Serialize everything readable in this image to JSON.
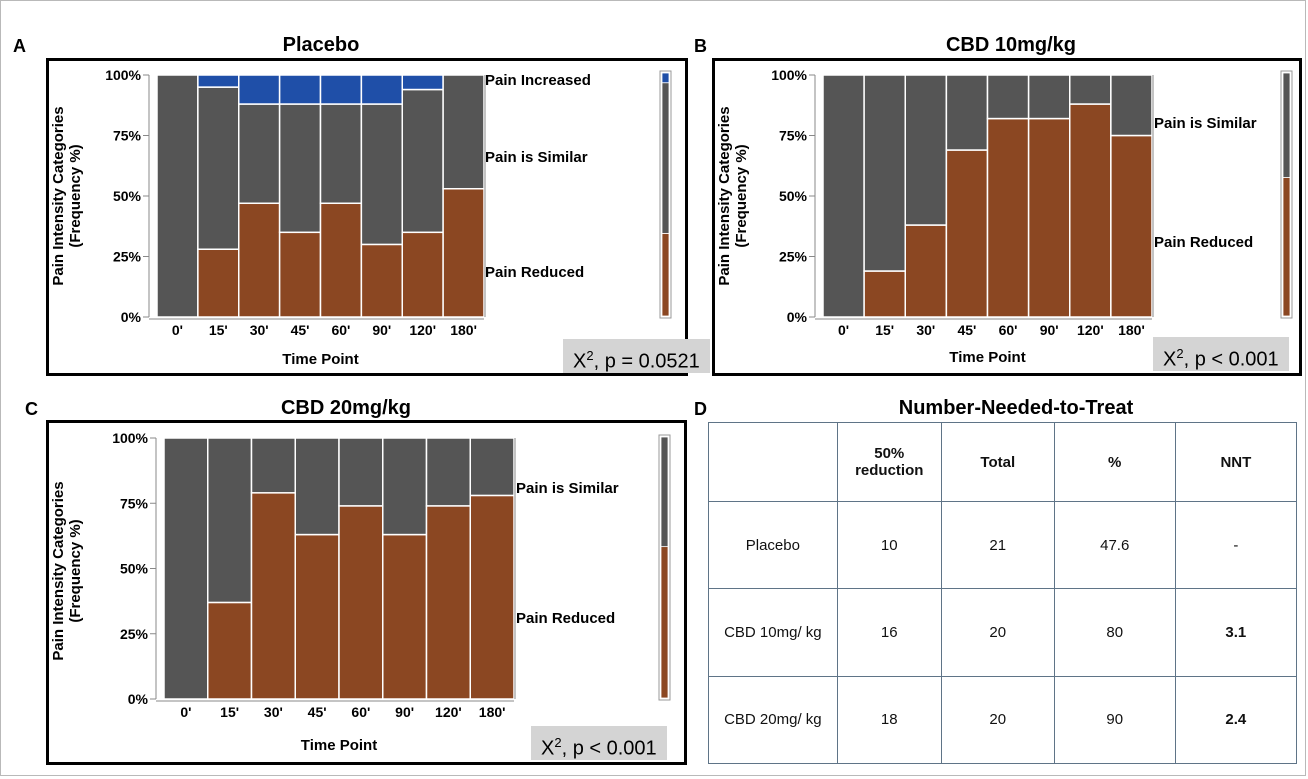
{
  "panels": {
    "a": {
      "letter": "A",
      "title": "Placebo",
      "stat_chi": "X",
      "stat_sup": "2",
      "stat_rest": ", p = 0.0521"
    },
    "b": {
      "letter": "B",
      "title": "CBD 10mg/kg",
      "stat_chi": "X",
      "stat_sup": "2",
      "stat_rest": ", p < 0.001"
    },
    "c": {
      "letter": "C",
      "title": "CBD 20mg/kg",
      "stat_chi": "X",
      "stat_sup": "2",
      "stat_rest": ", p < 0.001"
    },
    "d": {
      "letter": "D",
      "title": "Number-Needed-to-Treat"
    }
  },
  "colors": {
    "pain_reduced": "#8b4722",
    "pain_similar": "#555555",
    "pain_increased": "#1f4fa8",
    "stat_box": "#d4d4d4",
    "table_border": "#5f7487"
  },
  "chart_data": [
    {
      "type": "bar",
      "stacked": true,
      "title": "Placebo",
      "xlabel": "Time Point",
      "ylabel": "Pain Intensity Categories\n(Frequency %)",
      "categories": [
        "0'",
        "15'",
        "30'",
        "45'",
        "60'",
        "90'",
        "120'",
        "180'"
      ],
      "widths": [
        1,
        1,
        1,
        1,
        1,
        1,
        1,
        1
      ],
      "yticks": [
        "0%",
        "25%",
        "50%",
        "75%",
        "100%"
      ],
      "ylim": [
        0,
        100
      ],
      "series": [
        {
          "name": "Pain Reduced",
          "values": [
            0,
            28,
            47,
            35,
            47,
            30,
            35,
            53
          ]
        },
        {
          "name": "Pain is Similar",
          "values": [
            100,
            67,
            41,
            53,
            41,
            58,
            59,
            47
          ]
        },
        {
          "name": "Pain Increased",
          "values": [
            0,
            5,
            12,
            12,
            12,
            12,
            6,
            0
          ]
        }
      ],
      "right_labels": [
        "Pain Increased",
        "Pain is Similar",
        "Pain Reduced"
      ],
      "annotation": "X², p = 0.0521"
    },
    {
      "type": "bar",
      "stacked": true,
      "title": "CBD 10mg/kg",
      "xlabel": "Time Point",
      "ylabel": "Pain Intensity Categories\n(Frequency %)",
      "categories": [
        "0'",
        "15'",
        "30'",
        "45'",
        "60'",
        "90'",
        "120'",
        "180'"
      ],
      "widths": [
        1.0,
        1.0,
        1.0,
        1.0,
        1.0,
        1.0,
        1.0,
        1.0
      ],
      "yticks": [
        "0%",
        "25%",
        "50%",
        "75%",
        "100%"
      ],
      "ylim": [
        0,
        100
      ],
      "series": [
        {
          "name": "Pain Reduced",
          "values": [
            0,
            19,
            38,
            69,
            82,
            82,
            88,
            75
          ]
        },
        {
          "name": "Pain is Similar",
          "values": [
            100,
            81,
            62,
            31,
            18,
            18,
            12,
            25
          ]
        }
      ],
      "right_labels": [
        "Pain is Similar",
        "Pain Reduced"
      ],
      "annotation": "X², p < 0.001"
    },
    {
      "type": "bar",
      "stacked": true,
      "title": "CBD 20mg/kg",
      "xlabel": "Time Point",
      "ylabel": "Pain Intensity Categories\n(Frequency %)",
      "categories": [
        "0'",
        "15'",
        "30'",
        "45'",
        "60'",
        "90'",
        "120'",
        "180'"
      ],
      "widths": [
        1,
        1,
        1,
        1,
        1,
        1,
        1,
        1
      ],
      "yticks": [
        "0%",
        "25%",
        "50%",
        "75%",
        "100%"
      ],
      "ylim": [
        0,
        100
      ],
      "series": [
        {
          "name": "Pain Reduced",
          "values": [
            0,
            37,
            79,
            63,
            74,
            63,
            74,
            78
          ]
        },
        {
          "name": "Pain is Similar",
          "values": [
            100,
            63,
            21,
            37,
            26,
            37,
            26,
            22
          ]
        }
      ],
      "right_labels": [
        "Pain is Similar",
        "Pain Reduced"
      ],
      "annotation": "X², p < 0.001"
    },
    {
      "type": "table",
      "title": "Number-Needed-to-Treat",
      "columns": [
        "",
        "50% reduction",
        "Total",
        "%",
        "NNT"
      ],
      "rows": [
        [
          "Placebo",
          "10",
          "21",
          "47.6",
          "-"
        ],
        [
          "CBD 10mg/ kg",
          "16",
          "20",
          "80",
          "3.1"
        ],
        [
          "CBD 20mg/ kg",
          "18",
          "20",
          "90",
          "2.4"
        ]
      ]
    }
  ],
  "side_bars": [
    {
      "segments": [
        {
          "name": "Pain Reduced",
          "value": 34
        },
        {
          "name": "Pain is Similar",
          "value": 62
        },
        {
          "name": "Pain Increased",
          "value": 4
        }
      ]
    },
    {
      "segments": [
        {
          "name": "Pain Reduced",
          "value": 57
        },
        {
          "name": "Pain is Similar",
          "value": 43
        }
      ]
    },
    {
      "segments": [
        {
          "name": "Pain Reduced",
          "value": 58
        },
        {
          "name": "Pain is Similar",
          "value": 42
        }
      ]
    }
  ]
}
